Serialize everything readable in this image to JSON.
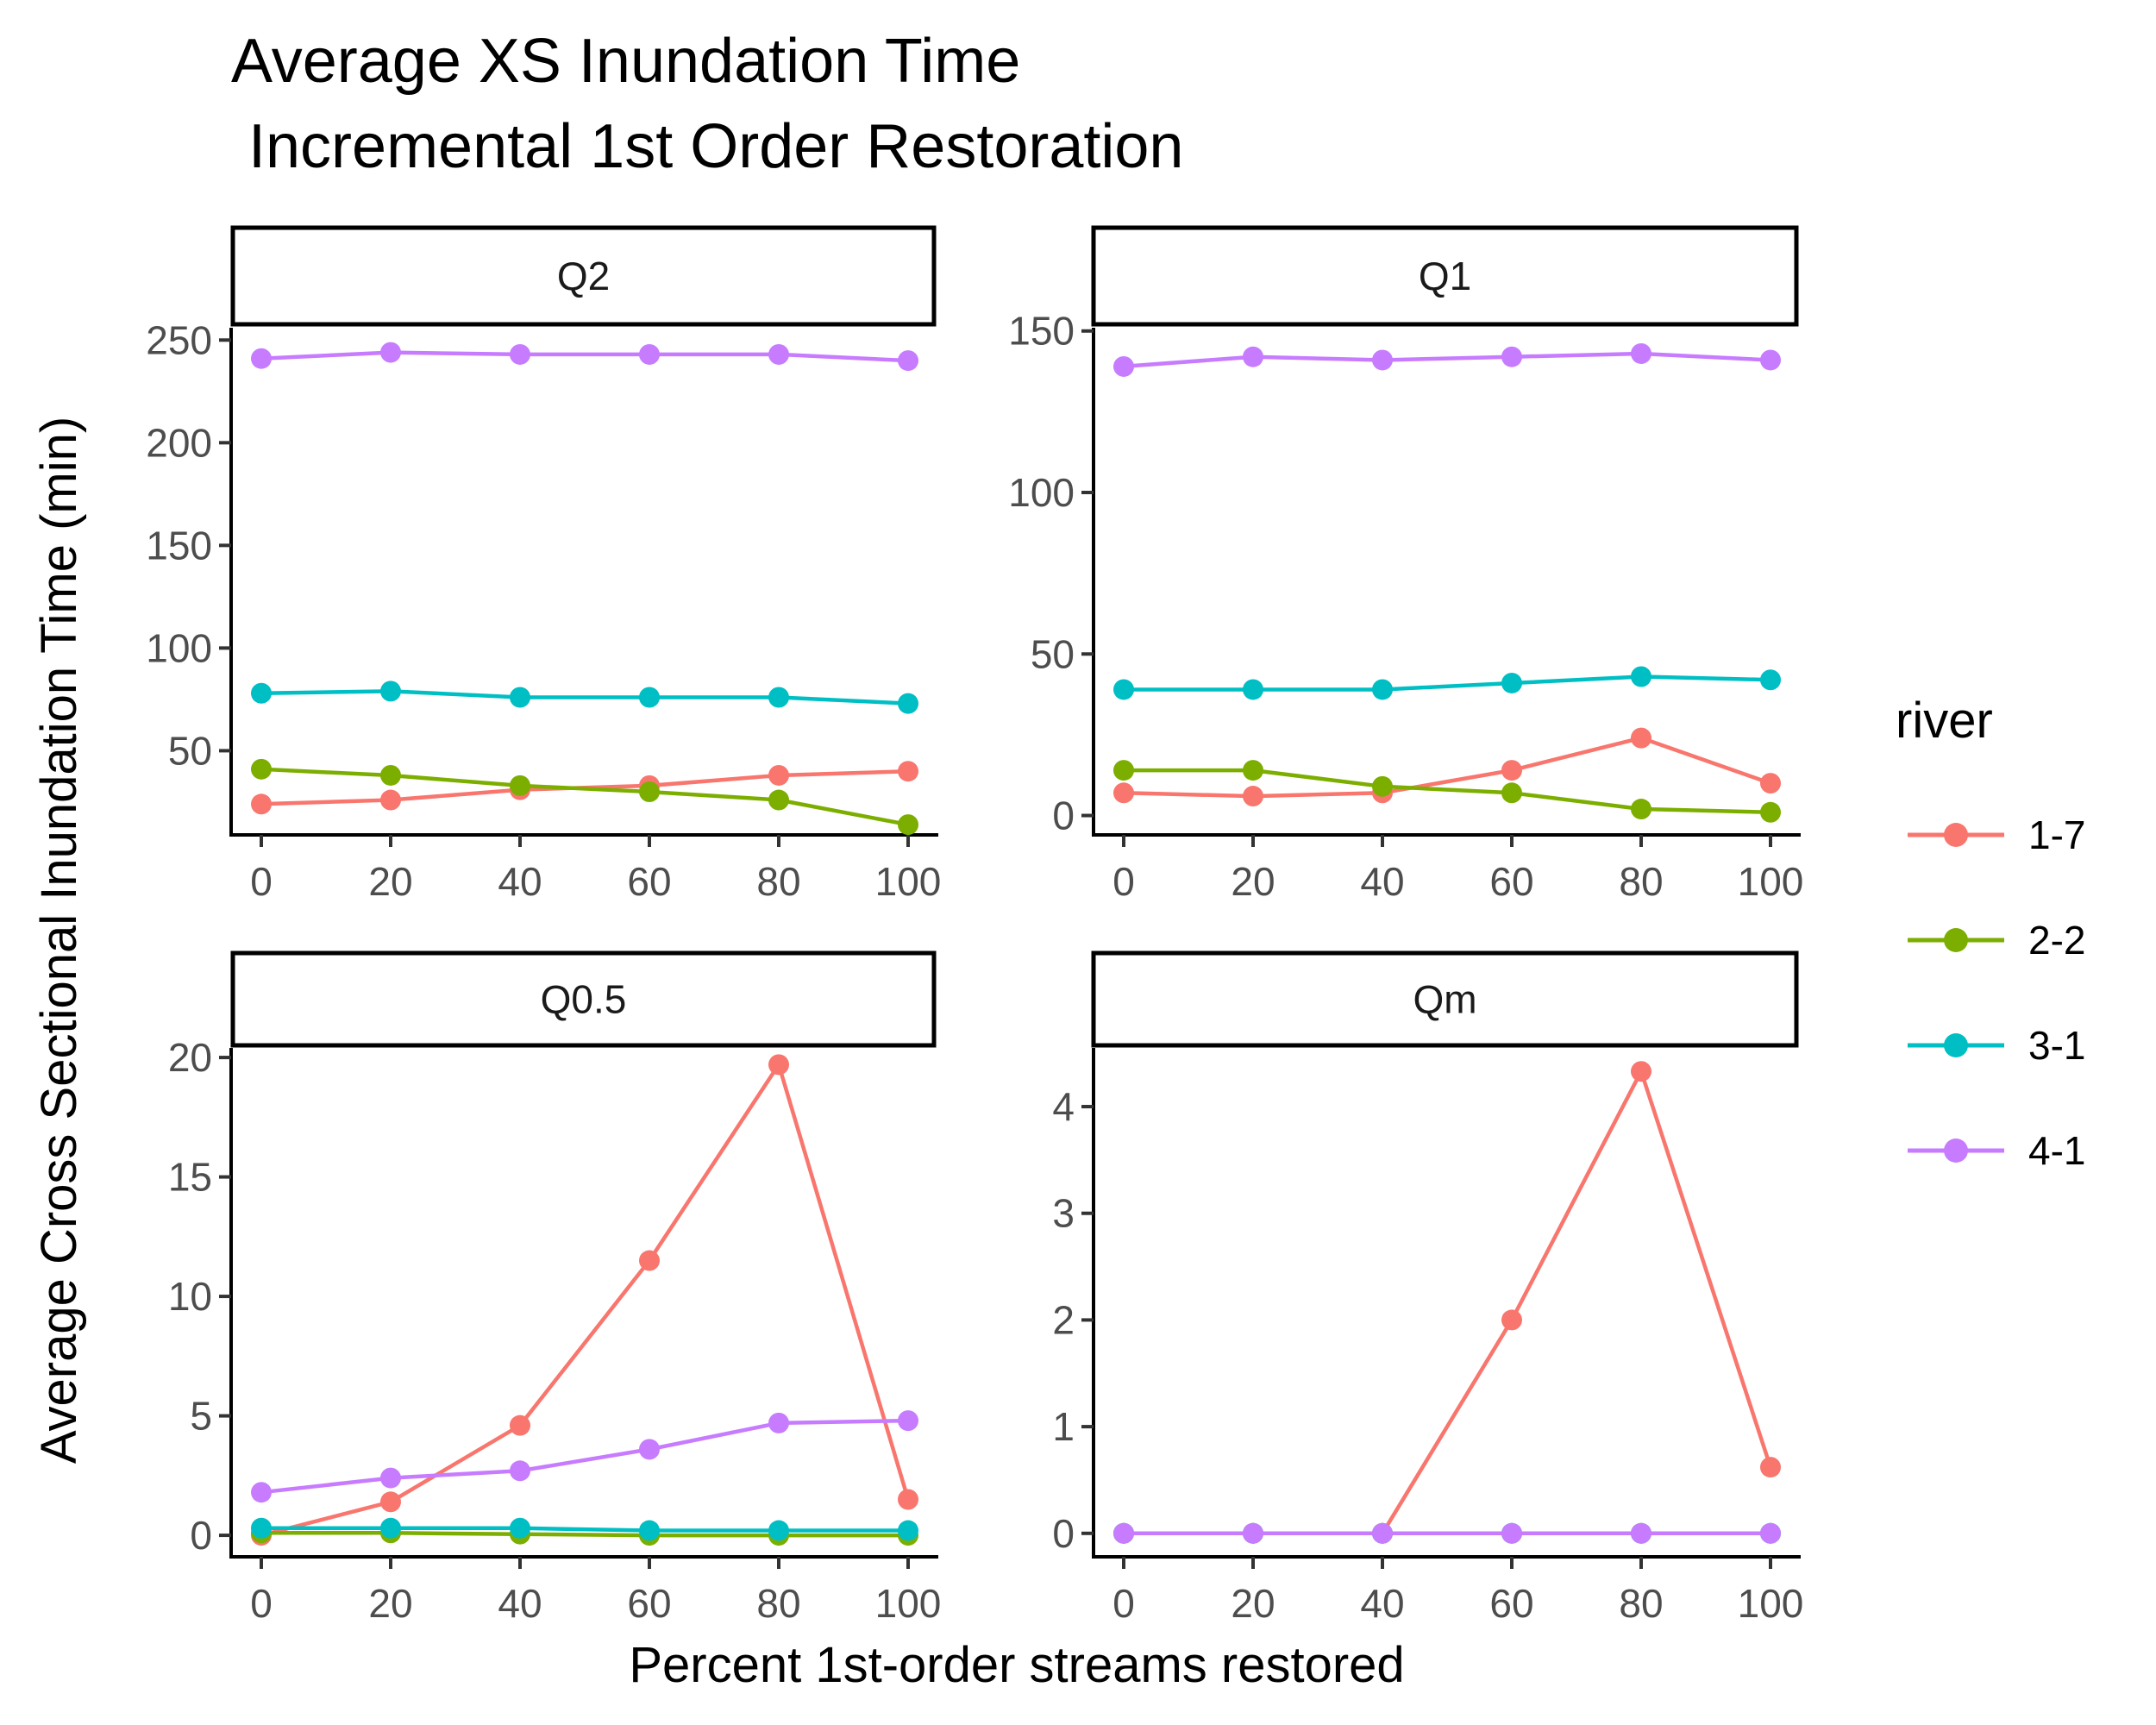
{
  "chart_data": {
    "type": "line",
    "title_line1": "Average XS Inundation Time",
    "title_line2": " Incremental 1st Order Restoration",
    "xlabel": "Percent 1st-order streams restored",
    "ylabel": "Average Cross Sectional Inundation Time (min)",
    "x": [
      0,
      20,
      40,
      60,
      80,
      100
    ],
    "x_ticks": [
      "0",
      "20",
      "40",
      "60",
      "80",
      "100"
    ],
    "legend": {
      "title": "river",
      "placement": "right",
      "entries": [
        {
          "label": "1-7",
          "color": "#F8766D"
        },
        {
          "label": "2-2",
          "color": "#7CAE00"
        },
        {
          "label": "3-1",
          "color": "#00BFC4"
        },
        {
          "label": "4-1",
          "color": "#C77CFF"
        }
      ]
    },
    "panels": [
      {
        "title": "Q2",
        "ylim": [
          9,
          256
        ],
        "y_ticks": [
          50,
          100,
          150,
          200,
          250
        ],
        "series": [
          {
            "name": "1-7",
            "values": [
              24,
              26,
              31,
              33,
              38,
              40
            ]
          },
          {
            "name": "2-2",
            "values": [
              41,
              38,
              33,
              30,
              26,
              14
            ]
          },
          {
            "name": "3-1",
            "values": [
              78,
              79,
              76,
              76,
              76,
              73
            ]
          },
          {
            "name": "4-1",
            "values": [
              241,
              244,
              243,
              243,
              243,
              240
            ]
          }
        ]
      },
      {
        "title": "Q1",
        "ylim": [
          -6,
          151
        ],
        "y_ticks": [
          0,
          50,
          100,
          150
        ],
        "series": [
          {
            "name": "1-7",
            "values": [
              7,
              6,
              7,
              14,
              24,
              10
            ]
          },
          {
            "name": "2-2",
            "values": [
              14,
              14,
              9,
              7,
              2,
              1
            ]
          },
          {
            "name": "3-1",
            "values": [
              39,
              39,
              39,
              41,
              43,
              42
            ]
          },
          {
            "name": "4-1",
            "values": [
              139,
              142,
              141,
              142,
              143,
              141
            ]
          }
        ]
      },
      {
        "title": "Q0.5",
        "ylim": [
          -0.9,
          20.4
        ],
        "y_ticks": [
          0,
          5,
          10,
          15,
          20
        ],
        "series": [
          {
            "name": "1-7",
            "values": [
              0.0,
              1.4,
              4.6,
              11.5,
              19.7,
              1.5
            ]
          },
          {
            "name": "2-2",
            "values": [
              0.1,
              0.1,
              0.05,
              0.0,
              0.0,
              0.0
            ]
          },
          {
            "name": "3-1",
            "values": [
              0.3,
              0.3,
              0.3,
              0.2,
              0.2,
              0.2
            ]
          },
          {
            "name": "4-1",
            "values": [
              1.8,
              2.4,
              2.7,
              3.6,
              4.7,
              4.8
            ]
          }
        ]
      },
      {
        "title": "Qm",
        "ylim": [
          -0.22,
          4.55
        ],
        "y_ticks": [
          0,
          1,
          2,
          3,
          4
        ],
        "series": [
          {
            "name": "1-7",
            "values": [
              0,
              0,
              0,
              2.0,
              4.33,
              0.62
            ]
          },
          {
            "name": "2-2",
            "values": [
              0,
              0,
              0,
              0,
              0,
              0
            ]
          },
          {
            "name": "3-1",
            "values": [
              0,
              0,
              0,
              0,
              0,
              0
            ]
          },
          {
            "name": "4-1",
            "values": [
              0,
              0,
              0,
              0,
              0,
              0
            ]
          }
        ]
      }
    ]
  }
}
